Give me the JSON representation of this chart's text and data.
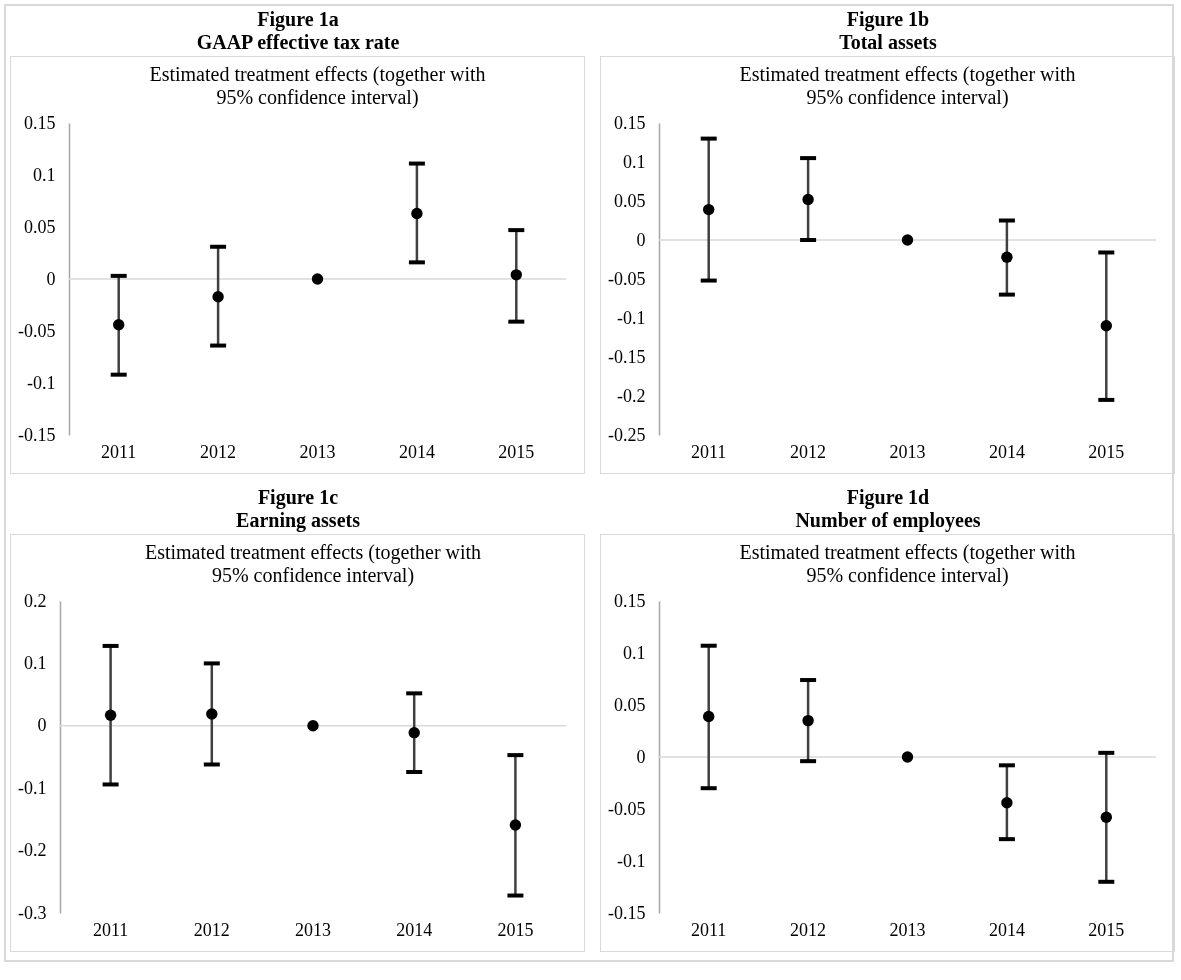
{
  "chart_data": [
    {
      "type": "scatter",
      "title": "Figure 1a",
      "subtitle": "GAAP effective tax rate",
      "annotations": [
        "Estimated treatment effects (together with 95% confidence interval)"
      ],
      "categories": [
        "2011",
        "2012",
        "2013",
        "2014",
        "2015"
      ],
      "marker": "circle",
      "ylim": [
        -0.15,
        0.15
      ],
      "yticks": [
        -0.15,
        -0.1,
        -0.05,
        0,
        0.05,
        0.1,
        0.15
      ],
      "ref_lines": [
        {
          "axis": "y",
          "value": 0,
          "color": "#d9d9d9"
        }
      ],
      "series": [
        {
          "color": "#000000",
          "values": [
            -0.044,
            -0.017,
            0,
            0.063,
            0.004
          ],
          "errors": [
            [
              -0.092,
              0.003
            ],
            [
              -0.064,
              0.031
            ],
            null,
            [
              0.016,
              0.111
            ],
            [
              -0.041,
              0.047
            ]
          ]
        }
      ]
    },
    {
      "type": "scatter",
      "title": "Figure 1b",
      "subtitle": "Total assets",
      "annotations": [
        "Estimated treatment effects (together with 95% confidence interval)"
      ],
      "categories": [
        "2011",
        "2012",
        "2013",
        "2014",
        "2015"
      ],
      "marker": "circle",
      "ylim": [
        -0.25,
        0.15
      ],
      "yticks": [
        -0.25,
        -0.2,
        -0.15,
        -0.1,
        -0.05,
        0,
        0.05,
        0.1,
        0.15
      ],
      "ref_lines": [
        {
          "axis": "y",
          "value": 0,
          "color": "#d9d9d9"
        }
      ],
      "series": [
        {
          "color": "#000000",
          "values": [
            0.039,
            0.052,
            0,
            -0.022,
            -0.11
          ],
          "errors": [
            [
              -0.052,
              0.13
            ],
            [
              0,
              0.105
            ],
            null,
            [
              -0.07,
              0.025
            ],
            [
              -0.205,
              -0.016
            ]
          ]
        }
      ]
    },
    {
      "type": "scatter",
      "title": "Figure 1c",
      "subtitle": "Earning assets",
      "annotations": [
        "Estimated treatment effects (together with 95% confidence interval)"
      ],
      "categories": [
        "2011",
        "2012",
        "2013",
        "2014",
        "2015"
      ],
      "marker": "circle",
      "ylim": [
        -0.3,
        0.2
      ],
      "yticks": [
        -0.3,
        -0.2,
        -0.1,
        0,
        0.1,
        0.2
      ],
      "ref_lines": [
        {
          "axis": "y",
          "value": 0,
          "color": "#d9d9d9"
        }
      ],
      "series": [
        {
          "color": "#000000",
          "values": [
            0.017,
            0.019,
            0,
            -0.011,
            -0.159
          ],
          "errors": [
            [
              -0.094,
              0.128
            ],
            [
              -0.062,
              0.1
            ],
            null,
            [
              -0.074,
              0.052
            ],
            [
              -0.272,
              -0.047
            ]
          ]
        }
      ]
    },
    {
      "type": "scatter",
      "title": "Figure 1d",
      "subtitle": "Number of employees",
      "annotations": [
        "Estimated treatment effects (together with 95% confidence interval)"
      ],
      "categories": [
        "2011",
        "2012",
        "2013",
        "2014",
        "2015"
      ],
      "marker": "circle",
      "ylim": [
        -0.15,
        0.15
      ],
      "yticks": [
        -0.15,
        -0.1,
        -0.05,
        0,
        0.05,
        0.1,
        0.15
      ],
      "ref_lines": [
        {
          "axis": "y",
          "value": 0,
          "color": "#d9d9d9"
        }
      ],
      "series": [
        {
          "color": "#000000",
          "values": [
            0.039,
            0.035,
            0,
            -0.044,
            -0.058
          ],
          "errors": [
            [
              -0.03,
              0.107
            ],
            [
              -0.004,
              0.074
            ],
            null,
            [
              -0.079,
              -0.008
            ],
            [
              -0.12,
              0.004
            ]
          ]
        }
      ]
    }
  ]
}
